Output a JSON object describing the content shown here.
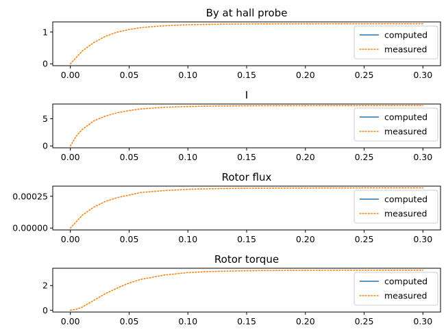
{
  "chart_data": [
    {
      "type": "line",
      "title": "By at hall probe",
      "xlim": [
        -0.015,
        0.315
      ],
      "ylim": [
        -0.06,
        1.32
      ],
      "xticks": [
        "0.00",
        "0.05",
        "0.10",
        "0.15",
        "0.20",
        "0.25",
        "0.30"
      ],
      "yticks": [
        {
          "value": 0,
          "label": "0"
        },
        {
          "value": 1,
          "label": "1"
        }
      ],
      "legend_position": "right",
      "series": [
        {
          "name": "computed",
          "style": "solid",
          "color": "#1f77b4",
          "x": [],
          "y": []
        },
        {
          "name": "measured",
          "style": "dotted",
          "color": "#ff7f0e",
          "x": [
            0,
            0.01,
            0.02,
            0.03,
            0.04,
            0.05,
            0.06,
            0.08,
            0.1,
            0.12,
            0.15,
            0.2,
            0.25,
            0.3
          ],
          "y": [
            0,
            0.4,
            0.67,
            0.87,
            1.0,
            1.08,
            1.14,
            1.2,
            1.23,
            1.245,
            1.255,
            1.26,
            1.262,
            1.263
          ]
        }
      ]
    },
    {
      "type": "line",
      "title": "I",
      "xlim": [
        -0.015,
        0.315
      ],
      "ylim": [
        -0.35,
        7.7
      ],
      "xticks": [
        "0.00",
        "0.05",
        "0.10",
        "0.15",
        "0.20",
        "0.25",
        "0.30"
      ],
      "yticks": [
        {
          "value": 0,
          "label": "0"
        },
        {
          "value": 5,
          "label": "5"
        }
      ],
      "legend_position": "right",
      "series": [
        {
          "name": "computed",
          "style": "solid",
          "color": "#1f77b4",
          "x": [],
          "y": []
        },
        {
          "name": "measured",
          "style": "dotted",
          "color": "#ff7f0e",
          "x": [
            0,
            0.005,
            0.01,
            0.02,
            0.03,
            0.04,
            0.05,
            0.06,
            0.08,
            0.1,
            0.12,
            0.15,
            0.2,
            0.25,
            0.3
          ],
          "y": [
            0,
            1.8,
            3.0,
            4.6,
            5.5,
            6.1,
            6.5,
            6.8,
            7.1,
            7.25,
            7.32,
            7.38,
            7.4,
            7.41,
            7.41
          ]
        }
      ]
    },
    {
      "type": "line",
      "title": "Rotor flux",
      "xlim": [
        -0.015,
        0.315
      ],
      "ylim": [
        -1.5e-05,
        0.00033
      ],
      "xticks": [
        "0.00",
        "0.05",
        "0.10",
        "0.15",
        "0.20",
        "0.25",
        "0.30"
      ],
      "yticks": [
        {
          "value": 0,
          "label": "0.00000"
        },
        {
          "value": 0.00025,
          "label": "0.00025"
        }
      ],
      "legend_position": "right",
      "series": [
        {
          "name": "computed",
          "style": "solid",
          "color": "#1f77b4",
          "x": [],
          "y": []
        },
        {
          "name": "measured",
          "style": "dotted",
          "color": "#ff7f0e",
          "x": [
            0,
            0.01,
            0.02,
            0.03,
            0.04,
            0.05,
            0.06,
            0.08,
            0.1,
            0.12,
            0.15,
            0.2,
            0.25,
            0.3
          ],
          "y": [
            0,
            0.0001,
            0.000165,
            0.00021,
            0.00024,
            0.00026,
            0.00028,
            0.000295,
            0.000305,
            0.00031,
            0.000313,
            0.000315,
            0.000316,
            0.000316
          ]
        }
      ]
    },
    {
      "type": "line",
      "title": "Rotor torque",
      "xlim": [
        -0.015,
        0.315
      ],
      "ylim": [
        -0.15,
        3.4
      ],
      "xticks": [
        "0.00",
        "0.05",
        "0.10",
        "0.15",
        "0.20",
        "0.25",
        "0.30"
      ],
      "yticks": [
        {
          "value": 0,
          "label": "0"
        },
        {
          "value": 2,
          "label": "2"
        }
      ],
      "legend_position": "right",
      "series": [
        {
          "name": "computed",
          "style": "solid",
          "color": "#1f77b4",
          "x": [],
          "y": []
        },
        {
          "name": "measured",
          "style": "dotted",
          "color": "#ff7f0e",
          "x": [
            0,
            0.005,
            0.01,
            0.02,
            0.03,
            0.04,
            0.05,
            0.06,
            0.08,
            0.1,
            0.12,
            0.15,
            0.2,
            0.25,
            0.3
          ],
          "y": [
            0,
            0.07,
            0.25,
            0.8,
            1.35,
            1.8,
            2.2,
            2.5,
            2.85,
            3.05,
            3.14,
            3.2,
            3.23,
            3.24,
            3.245
          ]
        }
      ]
    }
  ]
}
